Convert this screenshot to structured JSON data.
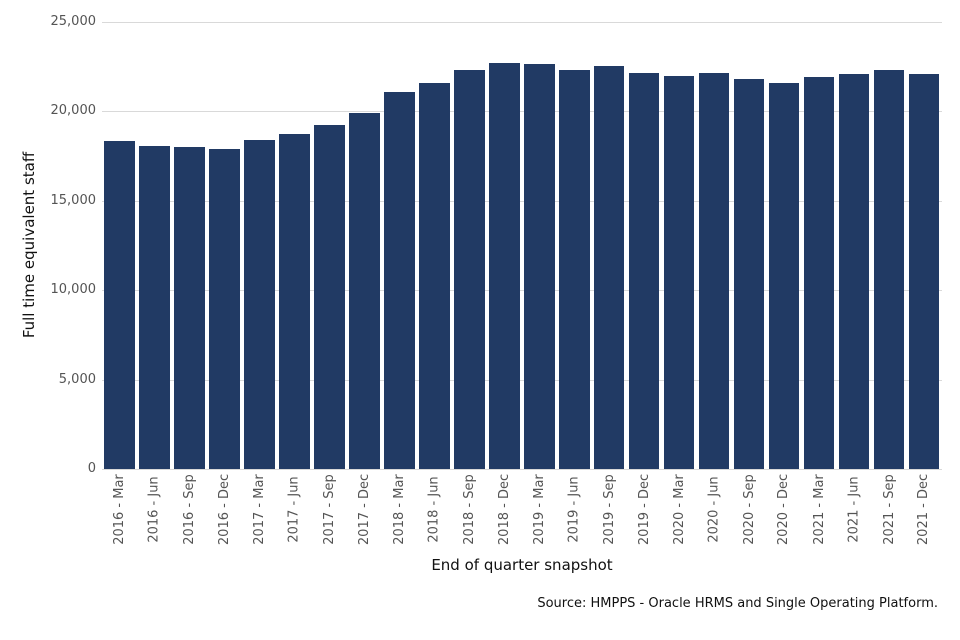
{
  "chart_data": {
    "type": "bar",
    "title": "",
    "xlabel": "End of quarter snapshot",
    "ylabel": "Full time equivalent staff",
    "categories": [
      "2016 - Mar",
      "2016 - Jun",
      "2016 - Sep",
      "2016 - Dec",
      "2017 - Mar",
      "2017 - Jun",
      "2017 - Sep",
      "2017 - Dec",
      "2018 - Mar",
      "2018 - Jun",
      "2018 - Sep",
      "2018 - Dec",
      "2019 - Mar",
      "2019 - Jun",
      "2019 - Sep",
      "2019 - Dec",
      "2020 - Mar",
      "2020 - Jun",
      "2020 - Sep",
      "2020 - Dec",
      "2021 - Mar",
      "2021 - Jun",
      "2021 - Sep",
      "2021 - Dec"
    ],
    "values": [
      18340,
      18060,
      17980,
      17870,
      18390,
      18730,
      19230,
      19880,
      21050,
      21590,
      22320,
      22690,
      22640,
      22320,
      22540,
      22150,
      21950,
      22130,
      21780,
      21580,
      21910,
      22080,
      22330,
      22090
    ],
    "ylim": [
      0,
      25000
    ],
    "yticks": [
      0,
      5000,
      10000,
      15000,
      20000,
      25000
    ],
    "ytick_labels": [
      "0",
      "5,000",
      "10,000",
      "15,000",
      "20,000",
      "25,000"
    ],
    "grid": true,
    "legend": false,
    "bar_color": "#213a64",
    "grid_color": "#d9d9d9",
    "tick_label_color": "#545454",
    "title_color": "#111111"
  },
  "source_note": "Source: HMPPS - Oracle HRMS and Single Operating Platform."
}
